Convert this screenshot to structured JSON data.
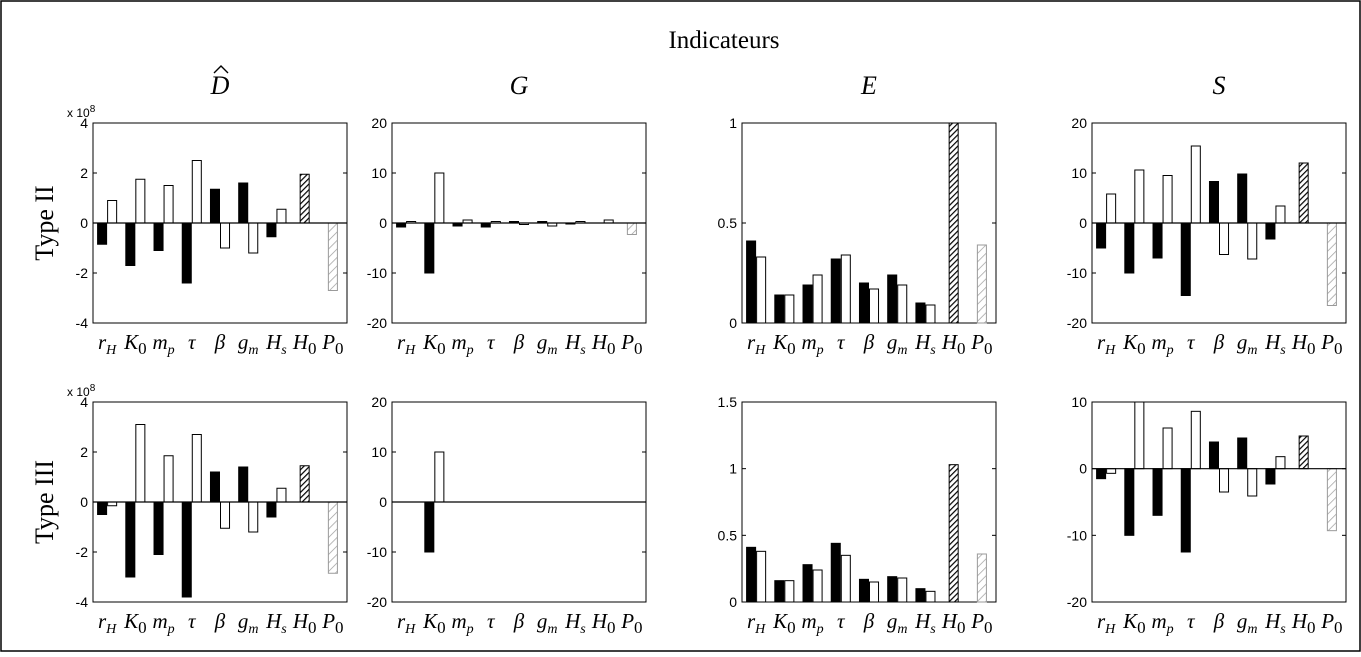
{
  "header": {
    "title": "Indicateurs"
  },
  "columns": [
    {
      "id": "D",
      "letter": "D",
      "hat": true
    },
    {
      "id": "G",
      "letter": "G",
      "hat": false
    },
    {
      "id": "E",
      "letter": "E",
      "hat": false
    },
    {
      "id": "S",
      "letter": "S",
      "hat": false
    }
  ],
  "rows": [
    {
      "id": "II",
      "label": "Type II"
    },
    {
      "id": "III",
      "label": "Type III"
    }
  ],
  "colors": {
    "filled": "#000000",
    "open": "#ffffff",
    "hatch_dark": "#000000",
    "hatch_light": "#9a9a9a"
  },
  "chart_data": [
    {
      "type": "bar",
      "panel": "D-II",
      "exponent_label": "x 10",
      "exponent": "8",
      "categories": [
        {
          "base": "r",
          "sub": "H",
          "greek": false
        },
        {
          "base": "K",
          "sub": "0",
          "greek": false
        },
        {
          "base": "m",
          "sub": "p",
          "greek": false
        },
        {
          "base": "τ",
          "sub": "",
          "greek": true
        },
        {
          "base": "β",
          "sub": "",
          "greek": true
        },
        {
          "base": "g",
          "sub": "m",
          "greek": false
        },
        {
          "base": "H",
          "sub": "s",
          "greek": false
        },
        {
          "base": "H",
          "sub": "0",
          "greek": false
        },
        {
          "base": "P",
          "sub": "0",
          "greek": false
        }
      ],
      "ylim": [
        -4,
        4
      ],
      "yticks": [
        -4,
        -2,
        0,
        2,
        4
      ],
      "series": [
        {
          "style": "filled",
          "values": [
            -0.85,
            -1.7,
            -1.1,
            -2.4,
            1.35,
            1.6,
            -0.55,
            null,
            null
          ]
        },
        {
          "style": "open",
          "values": [
            0.9,
            1.75,
            1.5,
            2.5,
            -1.0,
            -1.2,
            0.55,
            null,
            null
          ]
        },
        {
          "style": "hatch-dark",
          "values": [
            null,
            null,
            null,
            null,
            null,
            null,
            null,
            1.95,
            null
          ]
        },
        {
          "style": "hatch-light",
          "values": [
            null,
            null,
            null,
            null,
            null,
            null,
            null,
            null,
            -2.7
          ]
        }
      ]
    },
    {
      "type": "bar",
      "panel": "G-II",
      "categories": [
        {
          "base": "r",
          "sub": "H",
          "greek": false
        },
        {
          "base": "K",
          "sub": "0",
          "greek": false
        },
        {
          "base": "m",
          "sub": "p",
          "greek": false
        },
        {
          "base": "τ",
          "sub": "",
          "greek": true
        },
        {
          "base": "β",
          "sub": "",
          "greek": true
        },
        {
          "base": "g",
          "sub": "m",
          "greek": false
        },
        {
          "base": "H",
          "sub": "s",
          "greek": false
        },
        {
          "base": "H",
          "sub": "0",
          "greek": false
        },
        {
          "base": "P",
          "sub": "0",
          "greek": false
        }
      ],
      "ylim": [
        -20,
        20
      ],
      "yticks": [
        -20,
        -10,
        0,
        10,
        20
      ],
      "series": [
        {
          "style": "filled",
          "values": [
            -0.8,
            -10,
            -0.6,
            -0.8,
            0.3,
            0.3,
            -0.2,
            null,
            null
          ]
        },
        {
          "style": "open",
          "values": [
            0.3,
            10,
            0.6,
            0.3,
            -0.3,
            -0.6,
            0.3,
            0.6,
            null
          ]
        },
        {
          "style": "hatch-light",
          "values": [
            null,
            null,
            null,
            null,
            null,
            null,
            null,
            null,
            -2.3
          ]
        }
      ]
    },
    {
      "type": "bar",
      "panel": "E-II",
      "categories": [
        {
          "base": "r",
          "sub": "H",
          "greek": false
        },
        {
          "base": "K",
          "sub": "0",
          "greek": false
        },
        {
          "base": "m",
          "sub": "p",
          "greek": false
        },
        {
          "base": "τ",
          "sub": "",
          "greek": true
        },
        {
          "base": "β",
          "sub": "",
          "greek": true
        },
        {
          "base": "g",
          "sub": "m",
          "greek": false
        },
        {
          "base": "H",
          "sub": "s",
          "greek": false
        },
        {
          "base": "H",
          "sub": "0",
          "greek": false
        },
        {
          "base": "P",
          "sub": "0",
          "greek": false
        }
      ],
      "ylim": [
        0,
        1
      ],
      "yticks": [
        0,
        0.5,
        1
      ],
      "series": [
        {
          "style": "filled",
          "values": [
            0.41,
            0.14,
            0.19,
            0.32,
            0.2,
            0.24,
            0.1,
            null,
            null
          ]
        },
        {
          "style": "open",
          "values": [
            0.33,
            0.14,
            0.24,
            0.34,
            0.17,
            0.19,
            0.09,
            null,
            null
          ]
        },
        {
          "style": "hatch-dark",
          "values": [
            null,
            null,
            null,
            null,
            null,
            null,
            null,
            1.0,
            null
          ]
        },
        {
          "style": "hatch-light",
          "values": [
            null,
            null,
            null,
            null,
            null,
            null,
            null,
            null,
            0.39
          ]
        }
      ]
    },
    {
      "type": "bar",
      "panel": "S-II",
      "categories": [
        {
          "base": "r",
          "sub": "H",
          "greek": false
        },
        {
          "base": "K",
          "sub": "0",
          "greek": false
        },
        {
          "base": "m",
          "sub": "p",
          "greek": false
        },
        {
          "base": "τ",
          "sub": "",
          "greek": true
        },
        {
          "base": "β",
          "sub": "",
          "greek": true
        },
        {
          "base": "g",
          "sub": "m",
          "greek": false
        },
        {
          "base": "H",
          "sub": "s",
          "greek": false
        },
        {
          "base": "H",
          "sub": "0",
          "greek": false
        },
        {
          "base": "P",
          "sub": "0",
          "greek": false
        }
      ],
      "ylim": [
        -20,
        20
      ],
      "yticks": [
        -20,
        -10,
        0,
        10,
        20
      ],
      "series": [
        {
          "style": "filled",
          "values": [
            -5,
            -10,
            -7,
            -14.5,
            8.3,
            9.8,
            -3.2,
            null,
            null
          ]
        },
        {
          "style": "open",
          "values": [
            5.8,
            10.6,
            9.5,
            15.4,
            -6.3,
            -7.2,
            3.4,
            null,
            null
          ]
        },
        {
          "style": "hatch-dark",
          "values": [
            null,
            null,
            null,
            null,
            null,
            null,
            null,
            12,
            null
          ]
        },
        {
          "style": "hatch-light",
          "values": [
            null,
            null,
            null,
            null,
            null,
            null,
            null,
            null,
            -16.5
          ]
        }
      ]
    },
    {
      "type": "bar",
      "panel": "D-III",
      "exponent_label": "x 10",
      "exponent": "8",
      "categories": [
        {
          "base": "r",
          "sub": "H",
          "greek": false
        },
        {
          "base": "K",
          "sub": "0",
          "greek": false
        },
        {
          "base": "m",
          "sub": "p",
          "greek": false
        },
        {
          "base": "τ",
          "sub": "",
          "greek": true
        },
        {
          "base": "β",
          "sub": "",
          "greek": true
        },
        {
          "base": "g",
          "sub": "m",
          "greek": false
        },
        {
          "base": "H",
          "sub": "s",
          "greek": false
        },
        {
          "base": "H",
          "sub": "0",
          "greek": false
        },
        {
          "base": "P",
          "sub": "0",
          "greek": false
        }
      ],
      "ylim": [
        -4,
        4
      ],
      "yticks": [
        -4,
        -2,
        0,
        2,
        4
      ],
      "series": [
        {
          "style": "filled",
          "values": [
            -0.5,
            -3.0,
            -2.1,
            -3.8,
            1.2,
            1.4,
            -0.6,
            null,
            null
          ]
        },
        {
          "style": "open",
          "values": [
            -0.15,
            3.1,
            1.85,
            2.7,
            -1.05,
            -1.2,
            0.55,
            null,
            null
          ]
        },
        {
          "style": "hatch-dark",
          "values": [
            null,
            null,
            null,
            null,
            null,
            null,
            null,
            1.45,
            null
          ]
        },
        {
          "style": "hatch-light",
          "values": [
            null,
            null,
            null,
            null,
            null,
            null,
            null,
            null,
            -2.85
          ]
        }
      ]
    },
    {
      "type": "bar",
      "panel": "G-III",
      "categories": [
        {
          "base": "r",
          "sub": "H",
          "greek": false
        },
        {
          "base": "K",
          "sub": "0",
          "greek": false
        },
        {
          "base": "m",
          "sub": "p",
          "greek": false
        },
        {
          "base": "τ",
          "sub": "",
          "greek": true
        },
        {
          "base": "β",
          "sub": "",
          "greek": true
        },
        {
          "base": "g",
          "sub": "m",
          "greek": false
        },
        {
          "base": "H",
          "sub": "s",
          "greek": false
        },
        {
          "base": "H",
          "sub": "0",
          "greek": false
        },
        {
          "base": "P",
          "sub": "0",
          "greek": false
        }
      ],
      "ylim": [
        -20,
        20
      ],
      "yticks": [
        -20,
        -10,
        0,
        10,
        20
      ],
      "series": [
        {
          "style": "filled",
          "values": [
            null,
            -10,
            null,
            null,
            null,
            null,
            null,
            null,
            null
          ]
        },
        {
          "style": "open",
          "values": [
            null,
            10,
            null,
            null,
            null,
            null,
            null,
            null,
            null
          ]
        }
      ]
    },
    {
      "type": "bar",
      "panel": "E-III",
      "categories": [
        {
          "base": "r",
          "sub": "H",
          "greek": false
        },
        {
          "base": "K",
          "sub": "0",
          "greek": false
        },
        {
          "base": "m",
          "sub": "p",
          "greek": false
        },
        {
          "base": "τ",
          "sub": "",
          "greek": true
        },
        {
          "base": "β",
          "sub": "",
          "greek": true
        },
        {
          "base": "g",
          "sub": "m",
          "greek": false
        },
        {
          "base": "H",
          "sub": "s",
          "greek": false
        },
        {
          "base": "H",
          "sub": "0",
          "greek": false
        },
        {
          "base": "P",
          "sub": "0",
          "greek": false
        }
      ],
      "ylim": [
        0,
        1.5
      ],
      "yticks": [
        0,
        0.5,
        1,
        1.5
      ],
      "series": [
        {
          "style": "filled",
          "values": [
            0.41,
            0.16,
            0.28,
            0.44,
            0.17,
            0.19,
            0.1,
            null,
            null
          ]
        },
        {
          "style": "open",
          "values": [
            0.38,
            0.16,
            0.24,
            0.35,
            0.15,
            0.18,
            0.08,
            null,
            null
          ]
        },
        {
          "style": "hatch-dark",
          "values": [
            null,
            null,
            null,
            null,
            null,
            null,
            null,
            1.03,
            null
          ]
        },
        {
          "style": "hatch-light",
          "values": [
            null,
            null,
            null,
            null,
            null,
            null,
            null,
            null,
            0.36
          ]
        }
      ]
    },
    {
      "type": "bar",
      "panel": "S-III",
      "categories": [
        {
          "base": "r",
          "sub": "H",
          "greek": false
        },
        {
          "base": "K",
          "sub": "0",
          "greek": false
        },
        {
          "base": "m",
          "sub": "p",
          "greek": false
        },
        {
          "base": "τ",
          "sub": "",
          "greek": true
        },
        {
          "base": "β",
          "sub": "",
          "greek": true
        },
        {
          "base": "g",
          "sub": "m",
          "greek": false
        },
        {
          "base": "H",
          "sub": "s",
          "greek": false
        },
        {
          "base": "H",
          "sub": "0",
          "greek": false
        },
        {
          "base": "P",
          "sub": "0",
          "greek": false
        }
      ],
      "ylim": [
        -20,
        10
      ],
      "yticks": [
        -20,
        -10,
        0,
        10
      ],
      "series": [
        {
          "style": "filled",
          "values": [
            -1.5,
            -10,
            -7,
            -12.5,
            4,
            4.6,
            -2.3,
            null,
            null
          ]
        },
        {
          "style": "open",
          "values": [
            -0.7,
            10,
            6.1,
            8.6,
            -3.5,
            -4.1,
            1.8,
            null,
            null
          ]
        },
        {
          "style": "hatch-dark",
          "values": [
            null,
            null,
            null,
            null,
            null,
            null,
            null,
            4.9,
            null
          ]
        },
        {
          "style": "hatch-light",
          "values": [
            null,
            null,
            null,
            null,
            null,
            null,
            null,
            null,
            -9.3
          ]
        }
      ]
    }
  ]
}
